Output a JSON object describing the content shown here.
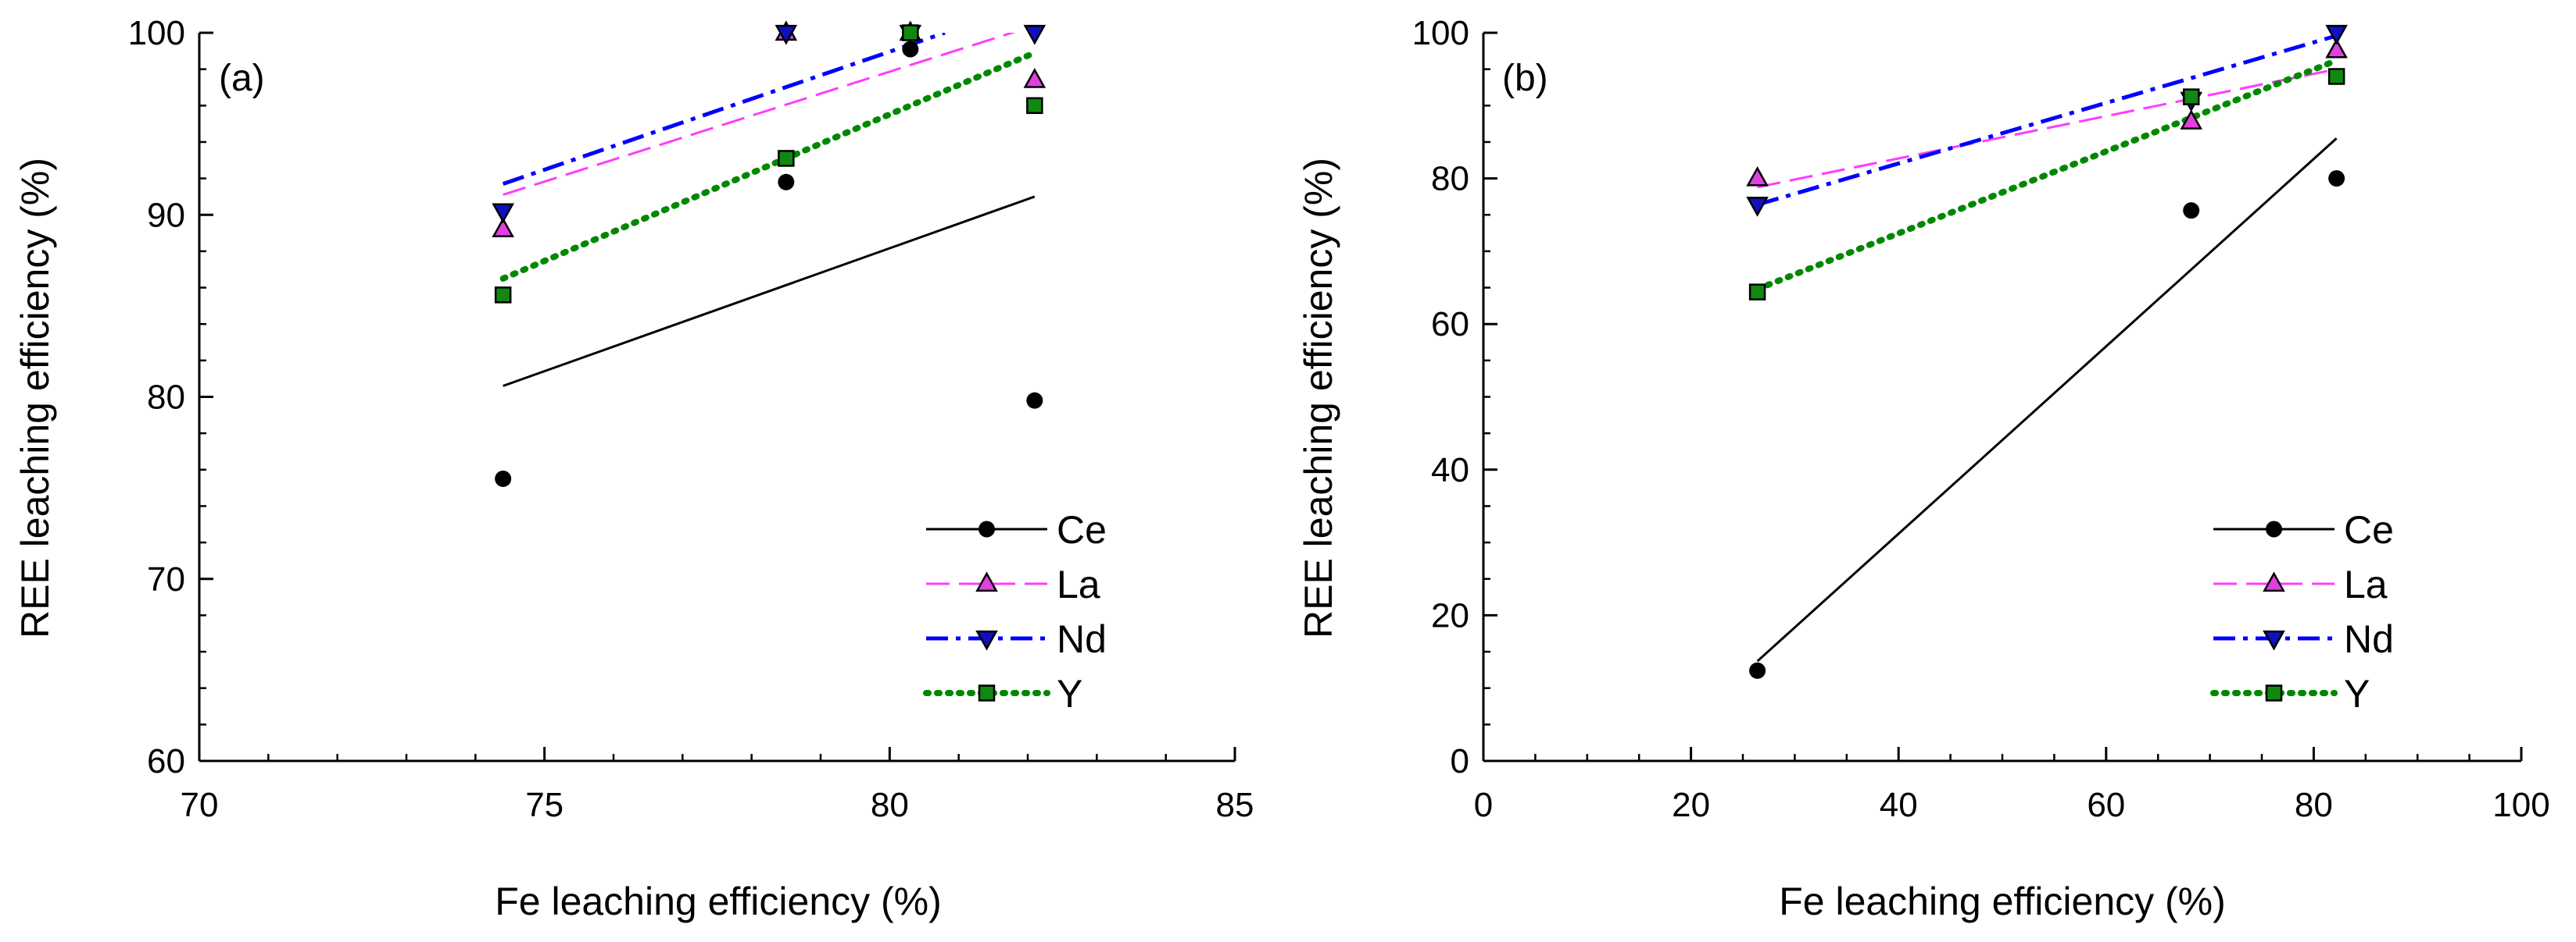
{
  "chart_data": [
    {
      "type": "scatter",
      "panel_label": "(a)",
      "xlabel": "Fe leaching efficiency (%)",
      "ylabel": "REE leaching efficiency (%)",
      "xlim": [
        70,
        85
      ],
      "ylim": [
        60,
        100
      ],
      "xticks": [
        70,
        75,
        80,
        85
      ],
      "yticks": [
        60,
        70,
        80,
        90,
        100
      ],
      "xtick_labels": [
        "70",
        "75",
        "80",
        "85"
      ],
      "ytick_labels": [
        "60",
        "70",
        "80",
        "90",
        "100"
      ],
      "x_minor_step": 1,
      "y_minor_step": 2,
      "legend_position": "bottom-right",
      "series": [
        {
          "name": "Ce",
          "marker": "circle",
          "color": "#000000",
          "line_color": "#000000",
          "line_style": "solid",
          "x": [
            74.4,
            78.5,
            80.3,
            82.1
          ],
          "y": [
            75.5,
            91.8,
            99.1,
            79.8
          ],
          "fit": {
            "x": [
              74.4,
              82.1
            ],
            "y": [
              80.6,
              91.0
            ]
          }
        },
        {
          "name": "La",
          "marker": "triangle-up",
          "color": "#e040e0",
          "line_color": "#ff3cff",
          "line_style": "dash",
          "x": [
            74.4,
            78.5,
            80.3,
            82.1
          ],
          "y": [
            89.2,
            100.0,
            100.0,
            97.4
          ],
          "fit": {
            "x": [
              74.4,
              82.1
            ],
            "y": [
              91.1,
              100.4
            ]
          }
        },
        {
          "name": "Nd",
          "marker": "triangle-down",
          "color": "#1010c0",
          "line_color": "#0000ff",
          "line_style": "dashdot",
          "x": [
            74.4,
            78.5,
            80.3,
            82.1
          ],
          "y": [
            90.2,
            100.0,
            100.0,
            100.0
          ],
          "fit": {
            "x": [
              74.4,
              80.8
            ],
            "y": [
              91.7,
              100.0
            ]
          }
        },
        {
          "name": "Y",
          "marker": "square",
          "color": "#118811",
          "line_color": "#008800",
          "line_style": "dot",
          "x": [
            74.4,
            78.5,
            80.3,
            82.1
          ],
          "y": [
            85.6,
            93.1,
            100.0,
            96.0
          ],
          "fit": {
            "x": [
              74.4,
              82.1
            ],
            "y": [
              86.5,
              98.9
            ]
          }
        }
      ]
    },
    {
      "type": "scatter",
      "panel_label": "(b)",
      "xlabel": "Fe leaching efficiency (%)",
      "ylabel": "REE leaching efficiency (%)",
      "xlim": [
        0,
        100
      ],
      "ylim": [
        0,
        100
      ],
      "xticks": [
        0,
        20,
        40,
        60,
        80,
        100
      ],
      "yticks": [
        0,
        20,
        40,
        60,
        80,
        100
      ],
      "xtick_labels": [
        "0",
        "20",
        "40",
        "60",
        "80",
        "100"
      ],
      "ytick_labels": [
        "0",
        "20",
        "40",
        "60",
        "80",
        "100"
      ],
      "x_minor_step": 5,
      "y_minor_step": 5,
      "legend_position": "bottom-right",
      "series": [
        {
          "name": "Ce",
          "marker": "circle",
          "color": "#000000",
          "line_color": "#000000",
          "line_style": "solid",
          "x": [
            26.4,
            68.2,
            82.2
          ],
          "y": [
            12.4,
            75.6,
            80.0
          ],
          "fit": {
            "x": [
              26.4,
              82.2
            ],
            "y": [
              13.7,
              85.5
            ]
          }
        },
        {
          "name": "La",
          "marker": "triangle-up",
          "color": "#e040e0",
          "line_color": "#ff3cff",
          "line_style": "dash",
          "x": [
            26.4,
            68.2,
            82.2
          ],
          "y": [
            80.0,
            87.8,
            97.6
          ],
          "fit": {
            "x": [
              26.4,
              82.2
            ],
            "y": [
              78.8,
              95.0
            ]
          }
        },
        {
          "name": "Nd",
          "marker": "triangle-down",
          "color": "#1010c0",
          "line_color": "#0000ff",
          "line_style": "dashdot",
          "x": [
            26.4,
            68.2,
            82.2
          ],
          "y": [
            76.4,
            90.8,
            100.0
          ],
          "fit": {
            "x": [
              26.4,
              82.2
            ],
            "y": [
              76.4,
              99.6
            ]
          }
        },
        {
          "name": "Y",
          "marker": "square",
          "color": "#118811",
          "line_color": "#008800",
          "line_style": "dot",
          "x": [
            26.4,
            68.2,
            82.2
          ],
          "y": [
            64.4,
            91.2,
            94.0
          ],
          "fit": {
            "x": [
              26.4,
              82.2
            ],
            "y": [
              64.8,
              96.2
            ]
          }
        }
      ]
    }
  ]
}
